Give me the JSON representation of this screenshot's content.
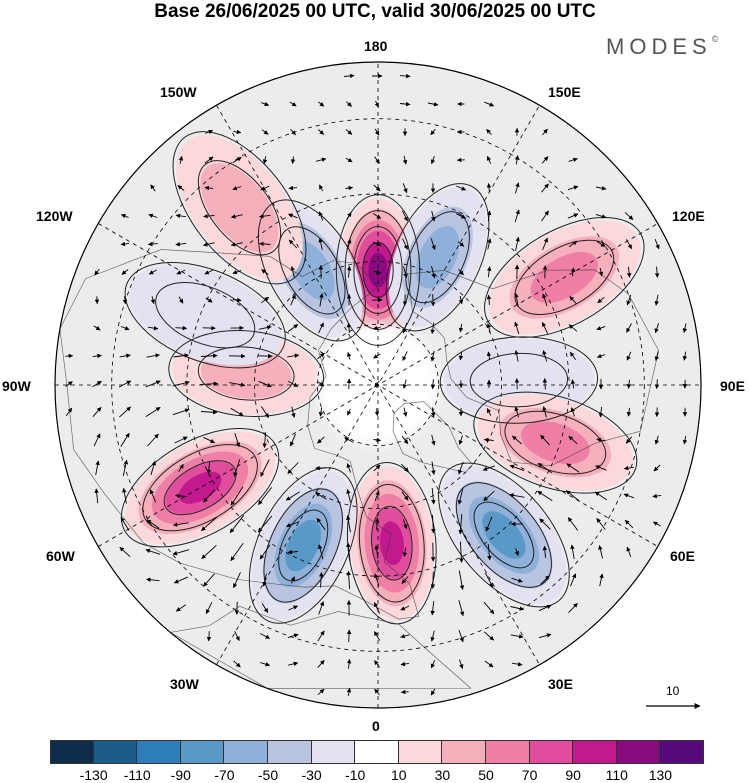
{
  "title": "Base 26/06/2025 00 UTC, valid 30/06/2025 00 UTC",
  "brand": "MODES",
  "brand_mark": "©",
  "longitude_labels": {
    "lon_180": "180",
    "lon_150w": "150W",
    "lon_150e": "150E",
    "lon_120w": "120W",
    "lon_120e": "120E",
    "lon_90w": "90W",
    "lon_90e": "90E",
    "lon_60w": "60W",
    "lon_60e": "60E",
    "lon_30w": "30W",
    "lon_30e": "30E",
    "lon_0": "0"
  },
  "reference_vector": {
    "label": "10",
    "magnitude": 10
  },
  "colorbar": {
    "ticks": [
      "-130",
      "-110",
      "-90",
      "-70",
      "-50",
      "-30",
      "-10",
      "10",
      "30",
      "50",
      "70",
      "90",
      "110",
      "130"
    ],
    "colors": [
      "#0d2e4a",
      "#1b5d8a",
      "#2e7cb8",
      "#5a98c8",
      "#8fb0d8",
      "#b8c4e0",
      "#e2e2f0",
      "#ffffff",
      "#fbd8da",
      "#f5b0bc",
      "#ef7fa6",
      "#e04d9d",
      "#c21a8e",
      "#8a0a80",
      "#560a7a"
    ]
  },
  "map_data": {
    "projection": "north polar stereographic",
    "anomalies": [
      {
        "lon": 180,
        "lat": 62,
        "value": 110
      },
      {
        "lon": 150,
        "lat": 58,
        "value": -70
      },
      {
        "lon": -155,
        "lat": 56,
        "value": -70
      },
      {
        "lon": -120,
        "lat": 40,
        "value": 50
      },
      {
        "lon": -92,
        "lat": 56,
        "value": -30
      },
      {
        "lon": -72,
        "lat": 46,
        "value": 50
      },
      {
        "lon": -40,
        "lat": 44,
        "value": -90
      },
      {
        "lon": -5,
        "lat": 52,
        "value": 90
      },
      {
        "lon": 25,
        "lat": 48,
        "value": -90
      },
      {
        "lon": 60,
        "lat": 42,
        "value": 90
      },
      {
        "lon": 95,
        "lat": 58,
        "value": 30
      },
      {
        "lon": 112,
        "lat": 46,
        "value": -30
      },
      {
        "lon": 142,
        "lat": 38,
        "value": 30
      }
    ]
  }
}
